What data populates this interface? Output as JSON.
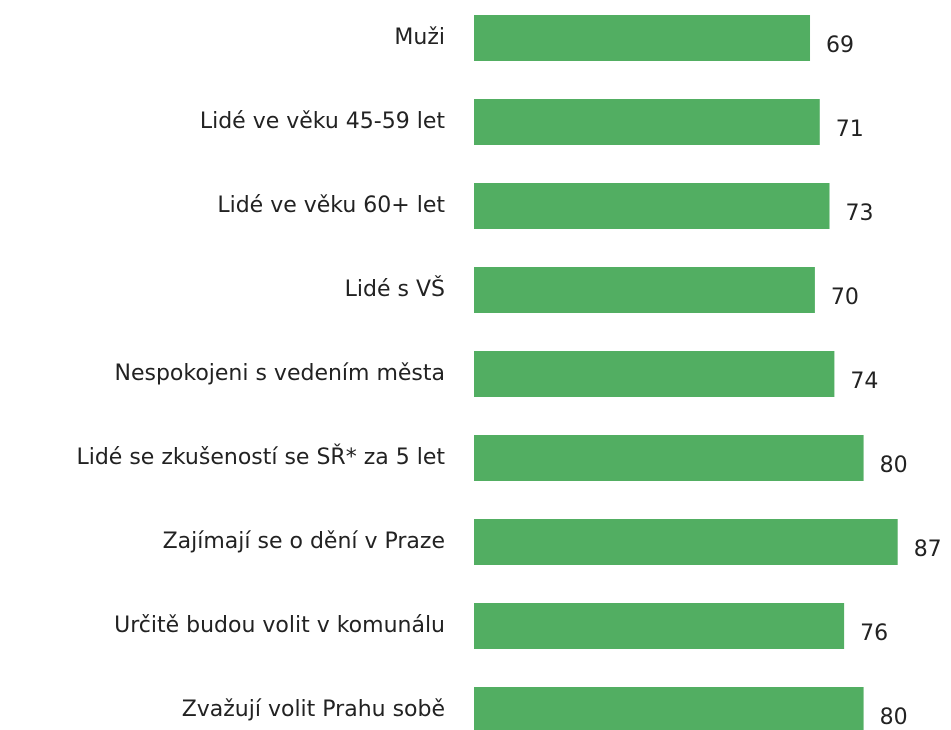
{
  "chart_data": {
    "type": "bar",
    "orientation": "horizontal",
    "categories": [
      "Muži",
      "Lidé ve věku 45-59 let",
      "Lidé ve věku 60+ let",
      "Lidé s VŠ",
      "Nespokojeni s vedením města",
      "Lidé se zkušeností se SŘ* za 5 let",
      "Zajímají se o dění v Praze",
      "Určitě budou volit v komunálu",
      "Zvažují volit Prahu sobě"
    ],
    "values": [
      69,
      71,
      73,
      70,
      74,
      80,
      87,
      76,
      80
    ],
    "color": "#52ae62"
  }
}
